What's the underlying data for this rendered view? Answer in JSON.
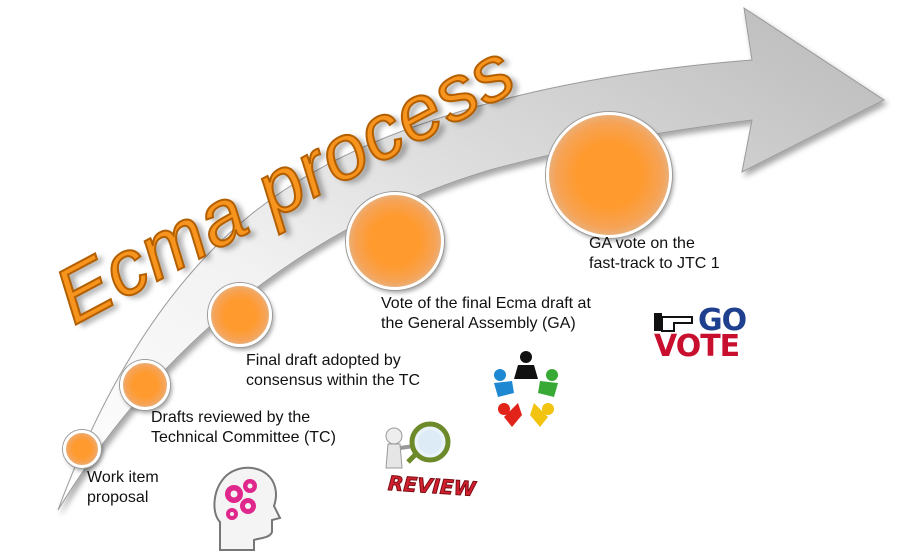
{
  "title": "Ecma process",
  "colors": {
    "accent": "#f7941d",
    "arrow": "#c7c7c7",
    "node": "#ff9a2e"
  },
  "steps": [
    {
      "lines": [
        "Work item",
        "proposal"
      ],
      "icon": "gears-head-icon"
    },
    {
      "lines": [
        "Drafts reviewed by the",
        "Technical Committee (TC)"
      ],
      "icon": ""
    },
    {
      "lines": [
        "Final draft adopted by",
        "consensus within the TC"
      ],
      "icon": "review-magnifier-icon"
    },
    {
      "lines": [
        "Vote of the final Ecma draft at",
        "the General Assembly (GA)"
      ],
      "icon": "people-circle-icon"
    },
    {
      "lines": [
        "GA vote on the",
        "fast-track to JTC 1"
      ],
      "icon": "go-vote-icon"
    }
  ],
  "icons": {
    "review_text": "REVIEW",
    "go_text": "GO",
    "vote_text": "VOTE"
  }
}
